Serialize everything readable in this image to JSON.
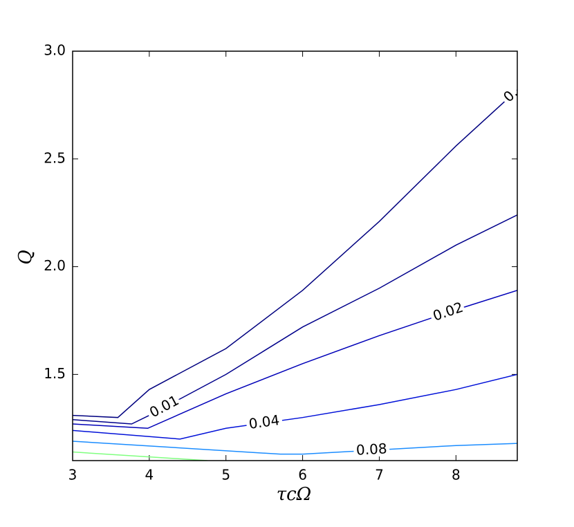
{
  "chart_data": {
    "type": "contour",
    "xlabel": "τcΩ",
    "ylabel": "Q",
    "xlim": [
      3,
      8.8
    ],
    "ylim": [
      1.1,
      3.0
    ],
    "xticks": [
      3,
      4,
      5,
      6,
      7,
      8
    ],
    "yticks": [
      1.5,
      {
        "value": 2.0,
        "label": "2.0"
      },
      {
        "value": 2.5,
        "label": "2.5"
      },
      {
        "value": 3.0,
        "label": "3.0"
      }
    ],
    "series": [
      {
        "name": "0.",
        "color": "#00007f",
        "x": [
          3,
          3.59,
          4,
          5,
          6,
          7,
          8,
          8.8
        ],
        "values": [
          1.31,
          1.3,
          1.43,
          1.62,
          1.89,
          2.21,
          2.56,
          2.82
        ]
      },
      {
        "name": "0.01",
        "color": "#00008b",
        "x": [
          3,
          3.77,
          4,
          5,
          6,
          7,
          8,
          8.8
        ],
        "values": [
          1.29,
          1.27,
          1.31,
          1.5,
          1.72,
          1.9,
          2.1,
          2.24
        ]
      },
      {
        "name": "0.02",
        "color": "#0000b8",
        "x": [
          3,
          3.98,
          5,
          6,
          7,
          8,
          8.8
        ],
        "values": [
          1.27,
          1.25,
          1.41,
          1.55,
          1.68,
          1.8,
          1.89
        ]
      },
      {
        "name": "0.04",
        "color": "#0010d8",
        "x": [
          3,
          4.4,
          5,
          6,
          7,
          8,
          8.8
        ],
        "values": [
          1.24,
          1.2,
          1.25,
          1.3,
          1.36,
          1.43,
          1.5
        ]
      },
      {
        "name": "0.08",
        "color": "#1a8cff",
        "x": [
          3,
          5.71,
          6,
          8,
          8.8
        ],
        "values": [
          1.19,
          1.13,
          1.13,
          1.17,
          1.18
        ]
      },
      {
        "color": "#7fff7f",
        "x": [
          3,
          4.76
        ],
        "values": [
          1.14,
          1.1
        ]
      }
    ]
  }
}
